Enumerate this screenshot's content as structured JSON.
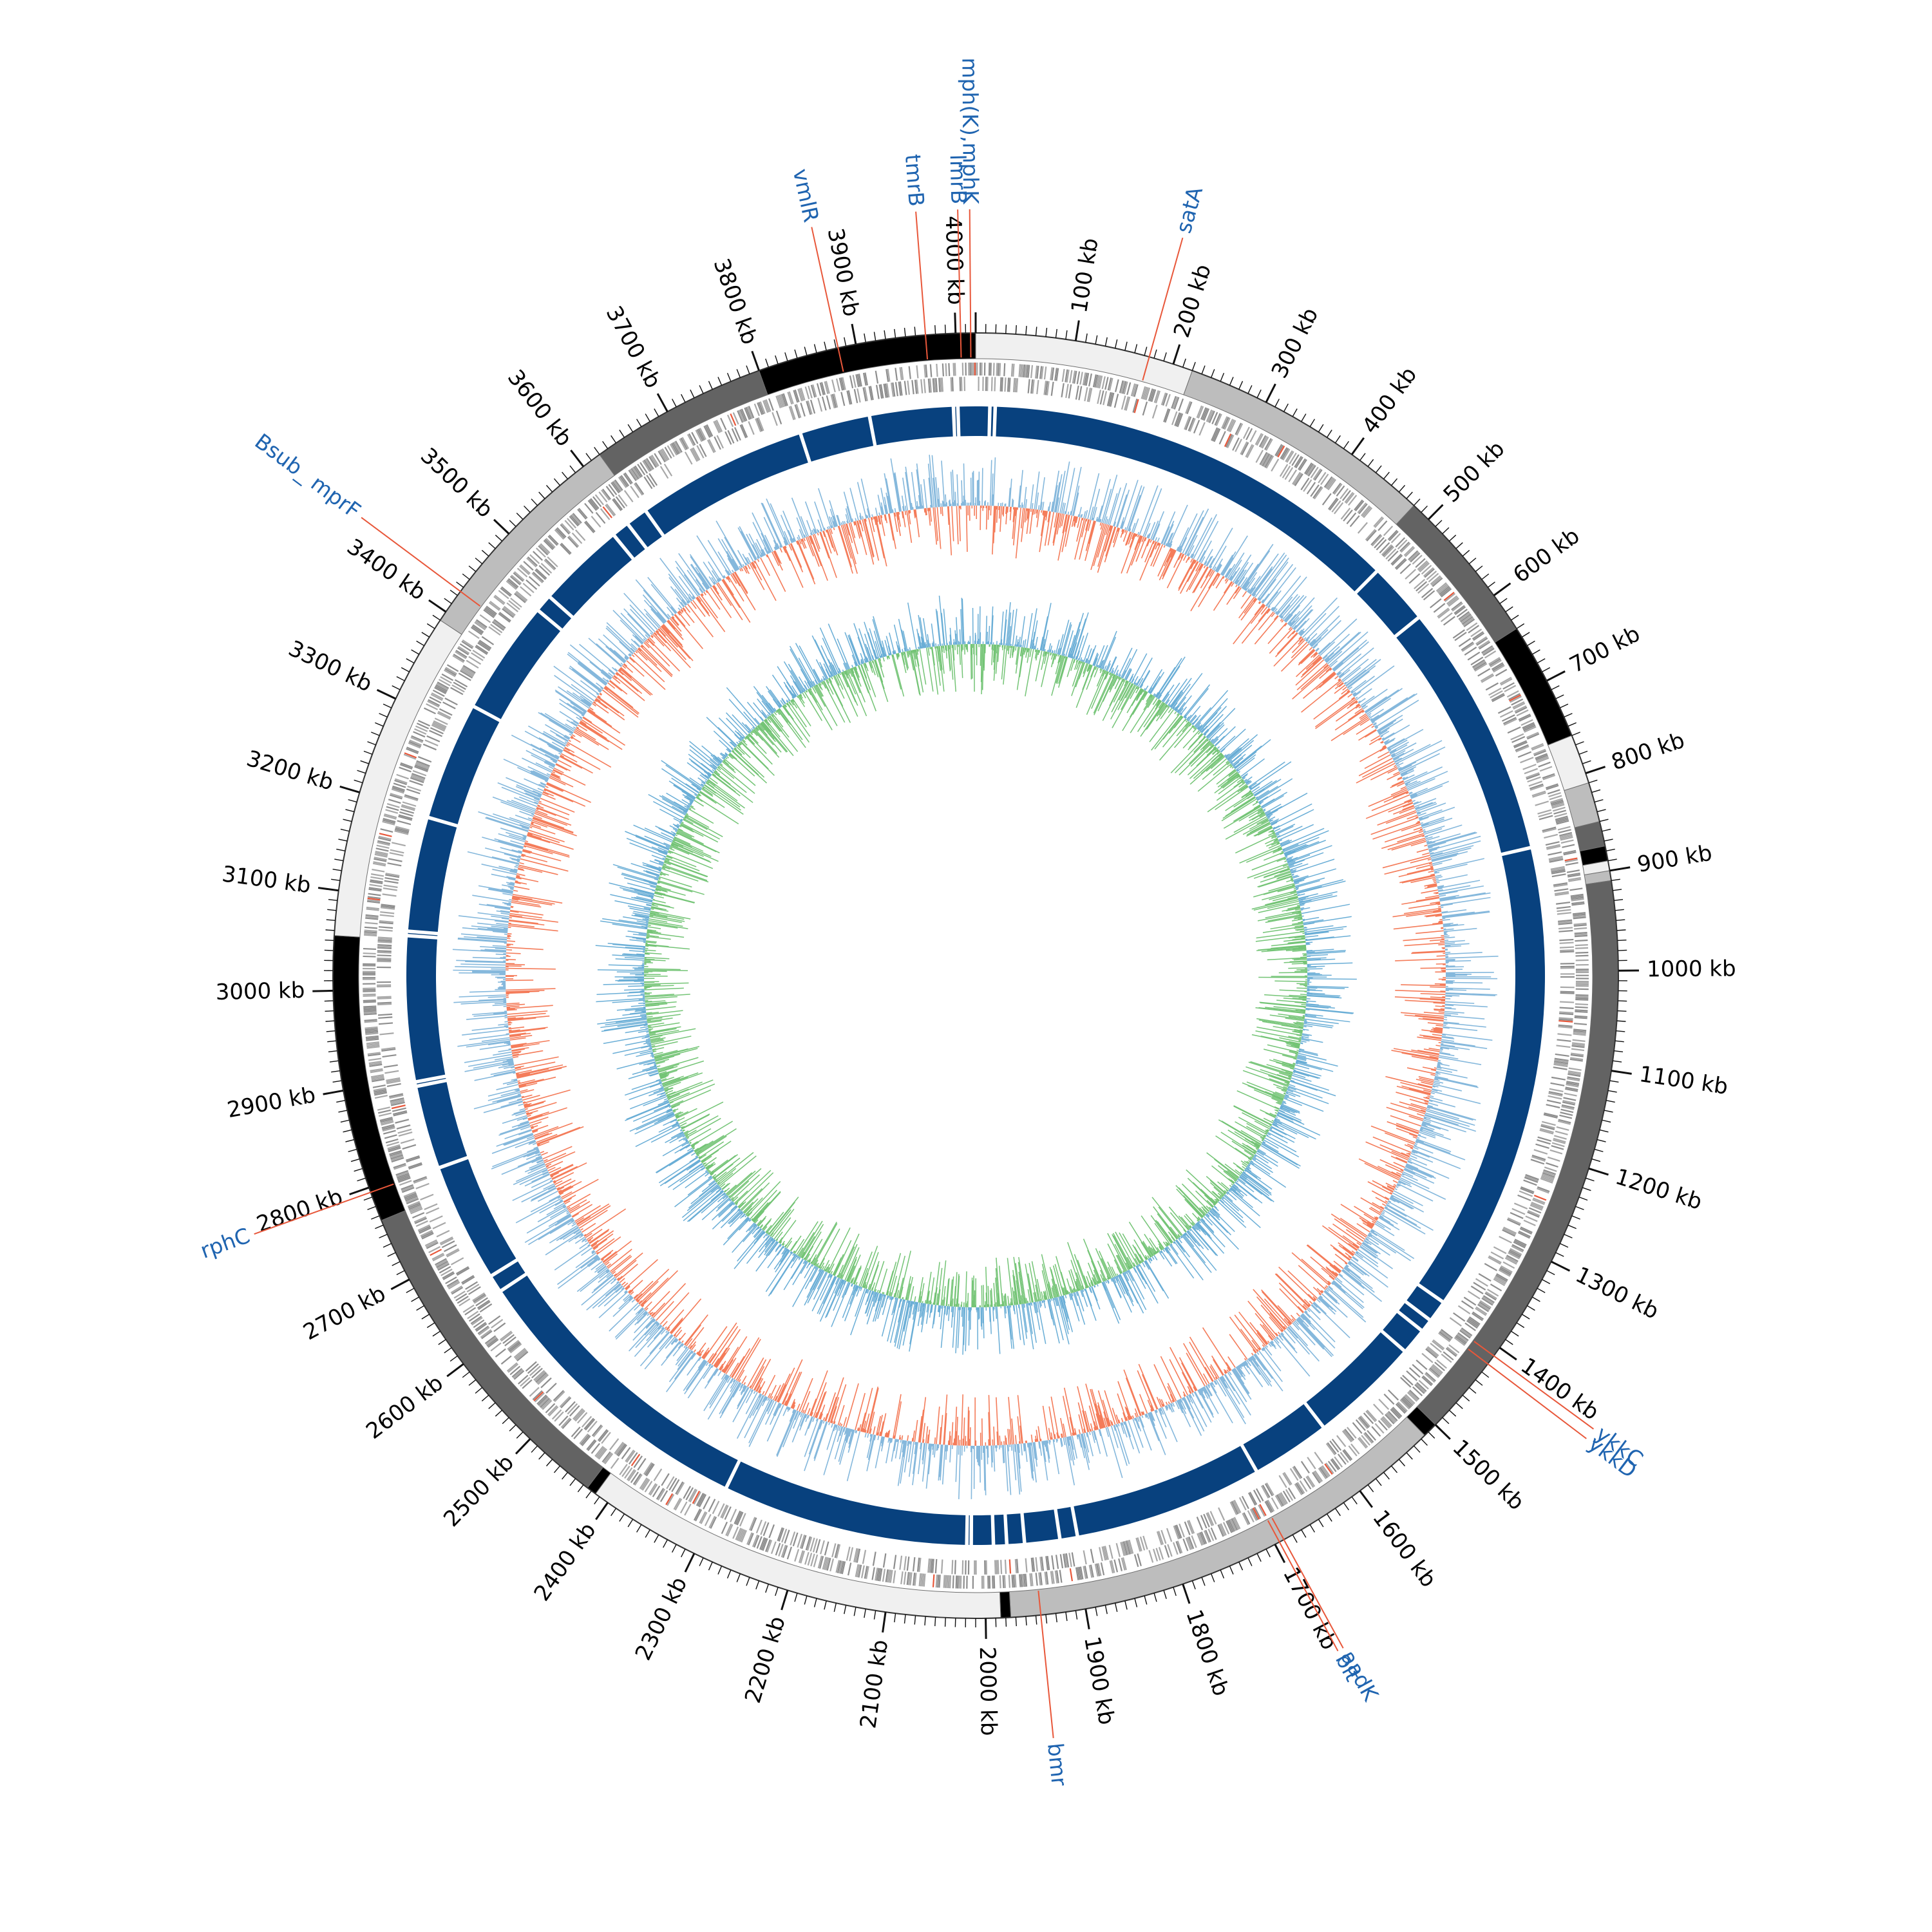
{
  "genome_map": {
    "total_kb": 4020,
    "scale_labels": [
      "100 kb",
      "200 kb",
      "300 kb",
      "400 kb",
      "500 kb",
      "600 kb",
      "700 kb",
      "800 kb",
      "900 kb",
      "1000 kb",
      "1100 kb",
      "1200 kb",
      "1300 kb",
      "1400 kb",
      "1500 kb",
      "1600 kb",
      "1700 kb",
      "1800 kb",
      "1900 kb",
      "2000 kb",
      "2100 kb",
      "2200 kb",
      "2300 kb",
      "2400 kb",
      "2500 kb",
      "2600 kb",
      "2700 kb",
      "2800 kb",
      "2900 kb",
      "3000 kb",
      "3100 kb",
      "3200 kb",
      "3300 kb",
      "3400 kb",
      "3500 kb",
      "3600 kb",
      "3700 kb",
      "3800 kb",
      "3900 kb",
      "4000 kb"
    ],
    "scale_positions_kb": [
      100,
      200,
      300,
      400,
      500,
      600,
      700,
      800,
      900,
      1000,
      1100,
      1200,
      1300,
      1400,
      1500,
      1600,
      1700,
      1800,
      1900,
      2000,
      2100,
      2200,
      2300,
      2400,
      2500,
      2600,
      2700,
      2800,
      2900,
      3000,
      3100,
      3200,
      3300,
      3400,
      3500,
      3600,
      3700,
      3800,
      3900,
      4000
    ],
    "gene_labels": [
      {
        "name": "tmrB",
        "kb": 3970
      },
      {
        "name": "lmrB",
        "kb": 4005
      },
      {
        "name": "mph(K),mphK",
        "kb": 4015
      },
      {
        "name": "vmlR",
        "kb": 3882
      },
      {
        "name": "satA",
        "kb": 175
      },
      {
        "name": "Bsub_ mprF",
        "kb": 3425
      },
      {
        "name": "rphC",
        "kb": 2795
      },
      {
        "name": "ykkC",
        "kb": 1410
      },
      {
        "name": "ykkD",
        "kb": 1420
      },
      {
        "name": "aadK",
        "kb": 1690
      },
      {
        "name": "blt",
        "kb": 1695
      },
      {
        "name": "bmr",
        "kb": 1945
      }
    ],
    "contig_segments": [
      {
        "start": 0,
        "end": 220,
        "shade": "#f0f0f0"
      },
      {
        "start": 220,
        "end": 480,
        "shade": "#bdbdbd"
      },
      {
        "start": 480,
        "end": 640,
        "shade": "#636363"
      },
      {
        "start": 640,
        "end": 760,
        "shade": "#000000"
      },
      {
        "start": 760,
        "end": 810,
        "shade": "#f0f0f0"
      },
      {
        "start": 810,
        "end": 850,
        "shade": "#bdbdbd"
      },
      {
        "start": 850,
        "end": 875,
        "shade": "#636363"
      },
      {
        "start": 875,
        "end": 890,
        "shade": "#000000"
      },
      {
        "start": 890,
        "end": 900,
        "shade": "#f0f0f0"
      },
      {
        "start": 900,
        "end": 910,
        "shade": "#bdbdbd"
      },
      {
        "start": 910,
        "end": 1500,
        "shade": "#636363"
      },
      {
        "start": 1500,
        "end": 1515,
        "shade": "#000000"
      },
      {
        "start": 1515,
        "end": 1975,
        "shade": "#bdbdbd"
      },
      {
        "start": 1975,
        "end": 1985,
        "shade": "#000000"
      },
      {
        "start": 1985,
        "end": 2415,
        "shade": "#f0f0f0"
      },
      {
        "start": 2415,
        "end": 2425,
        "shade": "#000000"
      },
      {
        "start": 2425,
        "end": 2765,
        "shade": "#636363"
      },
      {
        "start": 2765,
        "end": 3055,
        "shade": "#000000"
      },
      {
        "start": 3055,
        "end": 3390,
        "shade": "#f0f0f0"
      },
      {
        "start": 3390,
        "end": 3620,
        "shade": "#bdbdbd"
      },
      {
        "start": 3620,
        "end": 3800,
        "shade": "#636363"
      },
      {
        "start": 3800,
        "end": 4020,
        "shade": "#000000"
      }
    ],
    "track_gaps_kb": [
      3600,
      3625,
      3820,
      3900,
      3995,
      4000,
      16,
      22,
      500,
      570,
      860,
      1395,
      1420,
      1435,
      1465,
      1590,
      1680,
      1895,
      1915,
      1955,
      1975,
      1990,
      2015,
      2020,
      2300,
      2640,
      2660,
      2795,
      2890,
      2895,
      3060,
      3065,
      3195,
      3330,
      3460,
      3480,
      3580
    ],
    "colors": {
      "gene_track": "#08417e",
      "gc_above": "#85b8dc",
      "gc_below": "#f47c5a",
      "skew_outer": "#6aaed6",
      "skew_inner": "#74c476",
      "leader_line": "#e8573a",
      "gene_label": "#1f64b0",
      "feature_gray": "#909090"
    }
  }
}
